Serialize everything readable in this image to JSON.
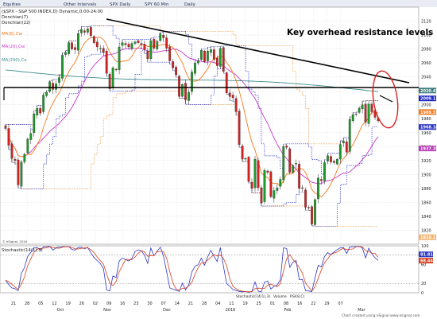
{
  "toolbar": {
    "items": [
      "Equities",
      "Other Intervals",
      "SPX Daily",
      "SPY 60 Min",
      "Daily"
    ]
  },
  "chart_data": {
    "type": "candlestick",
    "ticker_line": "($SPX - S&P 500 INDEX,D) Dynamic,0:00-24:00",
    "indicators": [
      "Donchian(7)",
      "Donchian(22)",
      "MA(8),Cw",
      "MA(20),Cw",
      "MA(200),Co"
    ],
    "annotation": "Key overhead resistance levels",
    "ylim": [
      1800,
      2140
    ],
    "y_ticks": [
      2120,
      2100,
      2080,
      2060,
      2040,
      2020,
      2000,
      1980,
      1960,
      1940,
      1920,
      1900,
      1880,
      1860,
      1840,
      1820
    ],
    "price_tags": [
      {
        "value": 2020.42,
        "label": "2020.42",
        "color": "#3e7d7d"
      },
      {
        "value": 2009.13,
        "label": "2009.13",
        "color": "#1a24c8"
      },
      {
        "value": 1989.57,
        "label": "1989.57",
        "color": "#f47a20"
      },
      {
        "value": 1968.1,
        "label": "1968.10",
        "color": "#2b37c5"
      },
      {
        "value": 1937.35,
        "label": "1937.35",
        "color": "#b83cb8"
      },
      {
        "value": 1810.1,
        "label": "1810.1",
        "color": "#f2b470"
      }
    ],
    "x_ticks": [
      "21",
      "28",
      "05",
      "12",
      "19",
      "26",
      "02",
      "09",
      "16",
      "23",
      "30",
      "07",
      "14",
      "21",
      "28",
      "04",
      "11",
      "19",
      "25",
      "01",
      "08",
      "16",
      "22",
      "29",
      "07"
    ],
    "month_labels": [
      "Oct",
      "Nov",
      "Dec",
      "2016",
      "Feb",
      "Mar"
    ],
    "closes": [
      1966,
      1942,
      1923,
      1920,
      1885,
      1918,
      1929,
      1951,
      1959,
      1987,
      1995,
      1988,
      2014,
      2018,
      2033,
      2022,
      2030,
      2039,
      2071,
      2075,
      2089,
      2080,
      2079,
      2102,
      2108,
      2104,
      2109,
      2099,
      2089,
      2083,
      2081,
      2075,
      2045,
      2023,
      2053,
      2050,
      2083,
      2089,
      2086,
      2083,
      2088,
      2090,
      2089,
      2086,
      2079,
      2066,
      2092,
      2081,
      2091,
      2102,
      2096,
      2081,
      2063,
      2053,
      2043,
      2012,
      2029,
      2007,
      2018,
      2047,
      2060,
      2063,
      2078,
      2062,
      2077,
      2079,
      2065,
      2056,
      2081,
      2048,
      2017,
      2012,
      2010,
      1990,
      1943,
      1922,
      1923,
      1890,
      1880,
      1922,
      1881,
      1859,
      1906,
      1903,
      1868,
      1877,
      1881,
      1893,
      1940,
      1939,
      1903,
      1913,
      1916,
      1880,
      1880,
      1853,
      1852,
      1829,
      1864,
      1895,
      1891,
      1917,
      1927,
      1918,
      1917,
      1922,
      1943,
      1948,
      1932,
      1979,
      1986,
      1987,
      1995,
      2000,
      1975,
      2001,
      1990,
      1982,
      1977
    ],
    "stochastic": {
      "name": "Stochastic(14(1),3)",
      "ylim": [
        0,
        100
      ],
      "y_ticks": [
        100,
        80,
        60,
        20,
        0
      ],
      "tags": [
        {
          "value": 81.81,
          "label": "81.81",
          "color": "#2b37c5"
        },
        {
          "value": 68.44,
          "label": "68.44",
          "color": "#d64020"
        }
      ]
    },
    "footer_tabs": [
      "Stochastic(14(1),3)",
      "Volume",
      "RSI(8,C)"
    ],
    "footer_notes": [
      "© eSignal, 2016",
      "Chart created using eSignal www.esignal.com"
    ]
  }
}
